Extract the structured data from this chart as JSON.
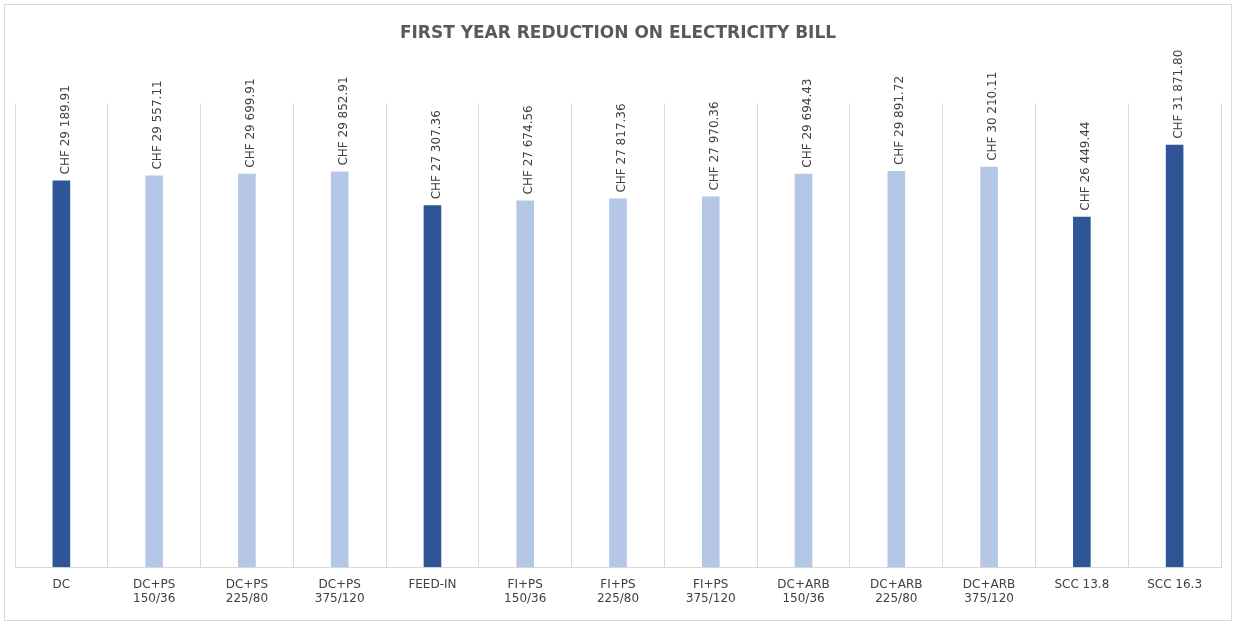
{
  "chart_data": {
    "type": "bar",
    "title": "FIRST YEAR REDUCTION ON ELECTRICITY BILL",
    "categories": [
      "DC",
      "DC+PS\n150/36",
      "DC+PS\n225/80",
      "DC+PS\n375/120",
      "FEED-IN",
      "FI+PS\n150/36",
      "FI+PS\n225/80",
      "FI+PS\n375/120",
      "DC+ARB\n150/36",
      "DC+ARB\n225/80",
      "DC+ARB\n375/120",
      "SCC 13.8",
      "SCC 16.3"
    ],
    "values": [
      29189.91,
      29557.11,
      29699.91,
      29852.91,
      27307.36,
      27674.56,
      27817.36,
      27970.36,
      29694.43,
      29891.72,
      30210.11,
      26449.44,
      31871.8
    ],
    "colors": [
      "#2f5597",
      "#b4c7e7",
      "#b4c7e7",
      "#b4c7e7",
      "#2f5597",
      "#b4c7e7",
      "#b4c7e7",
      "#b4c7e7",
      "#b4c7e7",
      "#b4c7e7",
      "#b4c7e7",
      "#2f5597",
      "#2f5597"
    ],
    "value_labels": [
      "CHF 29 189.91",
      "CHF 29 557.11",
      "CHF 29 699.91",
      "CHF 29 852.91",
      "CHF 27 307.36",
      "CHF 27 674.56",
      "CHF 27 817.36",
      "CHF 27 970.36",
      "CHF 29 694.43",
      "CHF 29 891.72",
      "CHF 30 210.11",
      "CHF 26 449.44",
      "CHF 31 871.80"
    ],
    "grid": "x",
    "tick_labels": "x",
    "legend": false
  }
}
